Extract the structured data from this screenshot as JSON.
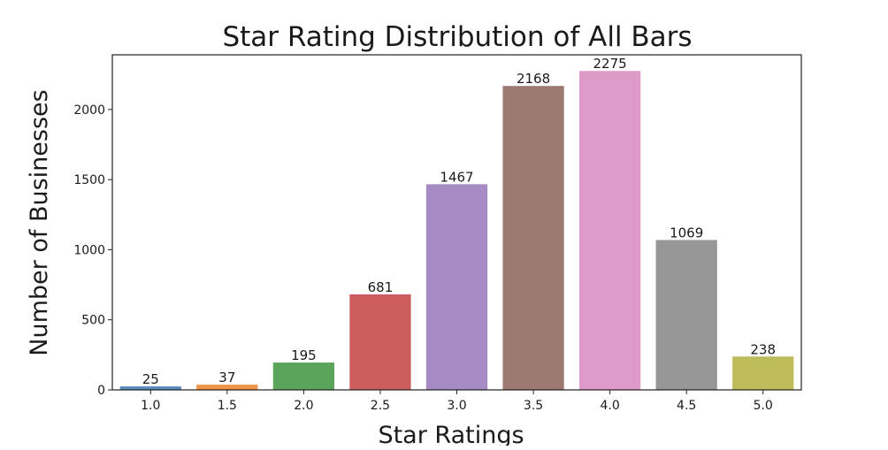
{
  "chart_data": {
    "type": "bar",
    "title": "Star Rating Distribution of All Bars",
    "xlabel": "Star Ratings",
    "ylabel": "Number of Businesses",
    "categories": [
      "1.0",
      "1.5",
      "2.0",
      "2.5",
      "3.0",
      "3.5",
      "4.0",
      "4.5",
      "5.0"
    ],
    "values": [
      25,
      37,
      195,
      681,
      1467,
      2168,
      2275,
      1069,
      238
    ],
    "data_labels": [
      "25",
      "37",
      "195",
      "681",
      "1467",
      "2168",
      "2275",
      "1069",
      "238"
    ],
    "ylim": [
      0,
      2390
    ],
    "yticks": [
      0,
      500,
      1000,
      1500,
      2000
    ],
    "ytick_labels": [
      "0",
      "500",
      "1000",
      "1500",
      "2000"
    ],
    "grid": false,
    "colors": [
      "#5b8cbf",
      "#ef9349",
      "#5aa55b",
      "#cd5c5c",
      "#a68bc4",
      "#9c7a71",
      "#de9ac9",
      "#969696",
      "#bdbb5a"
    ]
  }
}
